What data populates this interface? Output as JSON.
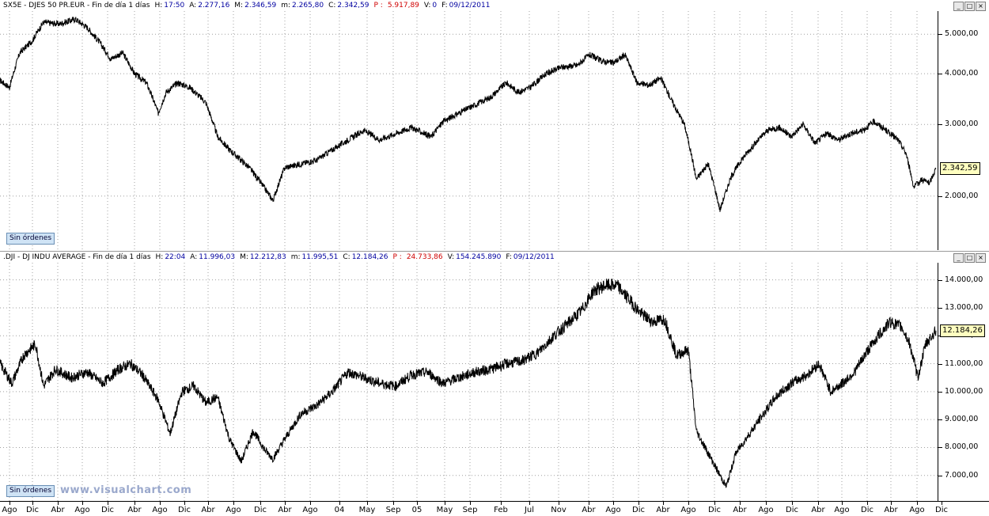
{
  "top_panel": {
    "header": [
      {
        "text": "SX5E - DJES 50 PR.EUR - Fin de día 1 días",
        "kind": "k"
      },
      {
        "text": "H:",
        "kind": "k"
      },
      {
        "text": "17:50",
        "kind": "v"
      },
      {
        "text": "A:",
        "kind": "k"
      },
      {
        "text": "2.277,16",
        "kind": "v"
      },
      {
        "text": "M:",
        "kind": "k"
      },
      {
        "text": "2.346,59",
        "kind": "v"
      },
      {
        "text": "m:",
        "kind": "k"
      },
      {
        "text": "2.265,80",
        "kind": "v"
      },
      {
        "text": "C:",
        "kind": "k"
      },
      {
        "text": "2.342,59",
        "kind": "v"
      },
      {
        "text": "P :",
        "kind": "p"
      },
      {
        "text": "5.917,89",
        "kind": "p"
      },
      {
        "text": "V:",
        "kind": "k"
      },
      {
        "text": "0",
        "kind": "v"
      },
      {
        "text": "F:",
        "kind": "k"
      },
      {
        "text": "09/12/2011",
        "kind": "v"
      }
    ],
    "badge": "Sin órdenes",
    "last_value": "2.342,59"
  },
  "bottom_panel": {
    "header": [
      {
        "text": ".DJI - DJ INDU AVERAGE - Fin de día 1 días",
        "kind": "k"
      },
      {
        "text": "H:",
        "kind": "k"
      },
      {
        "text": "22:04",
        "kind": "v"
      },
      {
        "text": "A:",
        "kind": "k"
      },
      {
        "text": "11.996,03",
        "kind": "v"
      },
      {
        "text": "M:",
        "kind": "k"
      },
      {
        "text": "12.212,83",
        "kind": "v"
      },
      {
        "text": "m:",
        "kind": "k"
      },
      {
        "text": "11.995,51",
        "kind": "v"
      },
      {
        "text": "C:",
        "kind": "k"
      },
      {
        "text": "12.184,26",
        "kind": "v"
      },
      {
        "text": "P :",
        "kind": "p"
      },
      {
        "text": "24.733,86",
        "kind": "p"
      },
      {
        "text": "V:",
        "kind": "k"
      },
      {
        "text": "154.245.890",
        "kind": "v"
      },
      {
        "text": "F:",
        "kind": "k"
      },
      {
        "text": "09/12/2011",
        "kind": "v"
      }
    ],
    "badge": "Sin órdenes",
    "last_value": "12.184,26",
    "watermark": "www.visualchart.com"
  },
  "window_buttons": [
    "_",
    "□",
    "×"
  ],
  "chart_data": [
    {
      "type": "line",
      "series": [
        {
          "x": [
            0,
            12,
            25,
            40,
            55,
            75,
            95,
            110,
            125,
            140,
            155,
            170,
            185,
            200,
            210,
            225,
            240,
            260,
            275,
            290,
            300,
            315,
            330,
            345,
            360,
            380,
            400,
            420,
            440,
            460,
            480,
            500,
            520,
            545,
            560,
            580,
            600,
            620,
            640,
            655,
            670,
            690,
            710,
            730,
            745,
            760,
            775,
            790,
            805,
            820,
            835,
            850,
            865,
            880,
            895,
            910,
            925,
            940,
            955,
            970,
            985,
            1000,
            1015,
            1030,
            1045,
            1060,
            1075,
            1090,
            1105,
            1120,
            1135,
            1145,
            1155,
            1165,
            1175,
            1183
          ],
          "y": [
            3850,
            3700,
            4500,
            4800,
            5350,
            5300,
            5450,
            5200,
            4800,
            4350,
            4500,
            4000,
            3800,
            3200,
            3600,
            3800,
            3700,
            3400,
            2800,
            2600,
            2500,
            2350,
            2150,
            1950,
            2350,
            2400,
            2450,
            2600,
            2750,
            2900,
            2750,
            2850,
            2950,
            2800,
            3050,
            3200,
            3350,
            3500,
            3800,
            3600,
            3700,
            4000,
            4150,
            4200,
            4450,
            4300,
            4250,
            4450,
            3800,
            3750,
            3900,
            3400,
            3000,
            2200,
            2400,
            1850,
            2250,
            2500,
            2700,
            2900,
            2950,
            2800,
            3000,
            2700,
            2850,
            2750,
            2850,
            2900,
            3050,
            2900,
            2750,
            2550,
            2100,
            2200,
            2150,
            2342.59
          ]
        }
      ],
      "ylim": [
        1500,
        5600
      ],
      "yscale": "log",
      "yticks": [
        "2.000,00",
        "3.000,00",
        "4.000,00",
        "5.000,00"
      ],
      "ytick_values": [
        2000,
        3000,
        4000,
        5000
      ],
      "grid": true
    },
    {
      "type": "line",
      "series": [
        {
          "x": [
            0,
            15,
            30,
            45,
            55,
            70,
            90,
            110,
            130,
            150,
            165,
            180,
            200,
            215,
            230,
            245,
            260,
            275,
            290,
            305,
            320,
            335,
            345,
            360,
            380,
            400,
            420,
            440,
            460,
            480,
            500,
            520,
            540,
            560,
            580,
            600,
            620,
            640,
            660,
            680,
            700,
            720,
            735,
            750,
            765,
            780,
            795,
            810,
            825,
            840,
            855,
            870,
            880,
            895,
            910,
            918,
            930,
            945,
            960,
            980,
            1000,
            1020,
            1035,
            1050,
            1065,
            1080,
            1095,
            1110,
            1125,
            1140,
            1150,
            1160,
            1170,
            1183
          ],
          "y": [
            11000,
            10300,
            11300,
            11700,
            10200,
            10800,
            10500,
            10700,
            10300,
            10800,
            11000,
            10600,
            9700,
            8500,
            10000,
            10200,
            9600,
            9800,
            8300,
            7500,
            8600,
            7900,
            7600,
            8300,
            9200,
            9500,
            10000,
            10700,
            10500,
            10300,
            10200,
            10600,
            10700,
            10300,
            10500,
            10700,
            10800,
            11000,
            11100,
            11400,
            12000,
            12500,
            12900,
            13600,
            13800,
            13800,
            13300,
            12800,
            12500,
            12600,
            11300,
            11500,
            8600,
            7800,
            7000,
            6600,
            7800,
            8400,
            9000,
            9800,
            10300,
            10600,
            11000,
            10000,
            10300,
            10700,
            11400,
            12000,
            12500,
            12300,
            11700,
            10500,
            11700,
            12184.26
          ]
        }
      ],
      "ylim": [
        6200,
        14500
      ],
      "yscale": "linear",
      "yticks": [
        "7.000,00",
        "8.000,00",
        "9.000,00",
        "10.000,00",
        "11.000,00",
        "12.000,00",
        "13.000,00",
        "14.000,00"
      ],
      "ytick_values": [
        7000,
        8000,
        9000,
        10000,
        11000,
        12000,
        13000,
        14000
      ],
      "grid": true
    }
  ],
  "x_axis": {
    "labels": [
      "Ago",
      "Dic",
      "Abr",
      "Ago",
      "Dic",
      "Abr",
      "Ago",
      "Dic",
      "Abr",
      "Ago",
      "Dic",
      "Abr",
      "Ago",
      "04",
      "May",
      "Sep",
      "05",
      "May",
      "Sep",
      "Feb",
      "Jul",
      "Nov",
      "Abr",
      "Ago",
      "Dic",
      "Abr",
      "Ago",
      "Dic",
      "Abr",
      "Ago",
      "Dic",
      "Abr",
      "Ago",
      "Dic",
      "Abr",
      "Ago",
      "Dic"
    ],
    "positions": [
      12,
      41,
      73,
      104,
      136,
      170,
      202,
      233,
      263,
      295,
      329,
      360,
      392,
      429,
      464,
      497,
      527,
      562,
      594,
      633,
      669,
      706,
      744,
      775,
      807,
      838,
      870,
      903,
      935,
      968,
      1001,
      1034,
      1064,
      1096,
      1126,
      1159,
      1190
    ]
  }
}
